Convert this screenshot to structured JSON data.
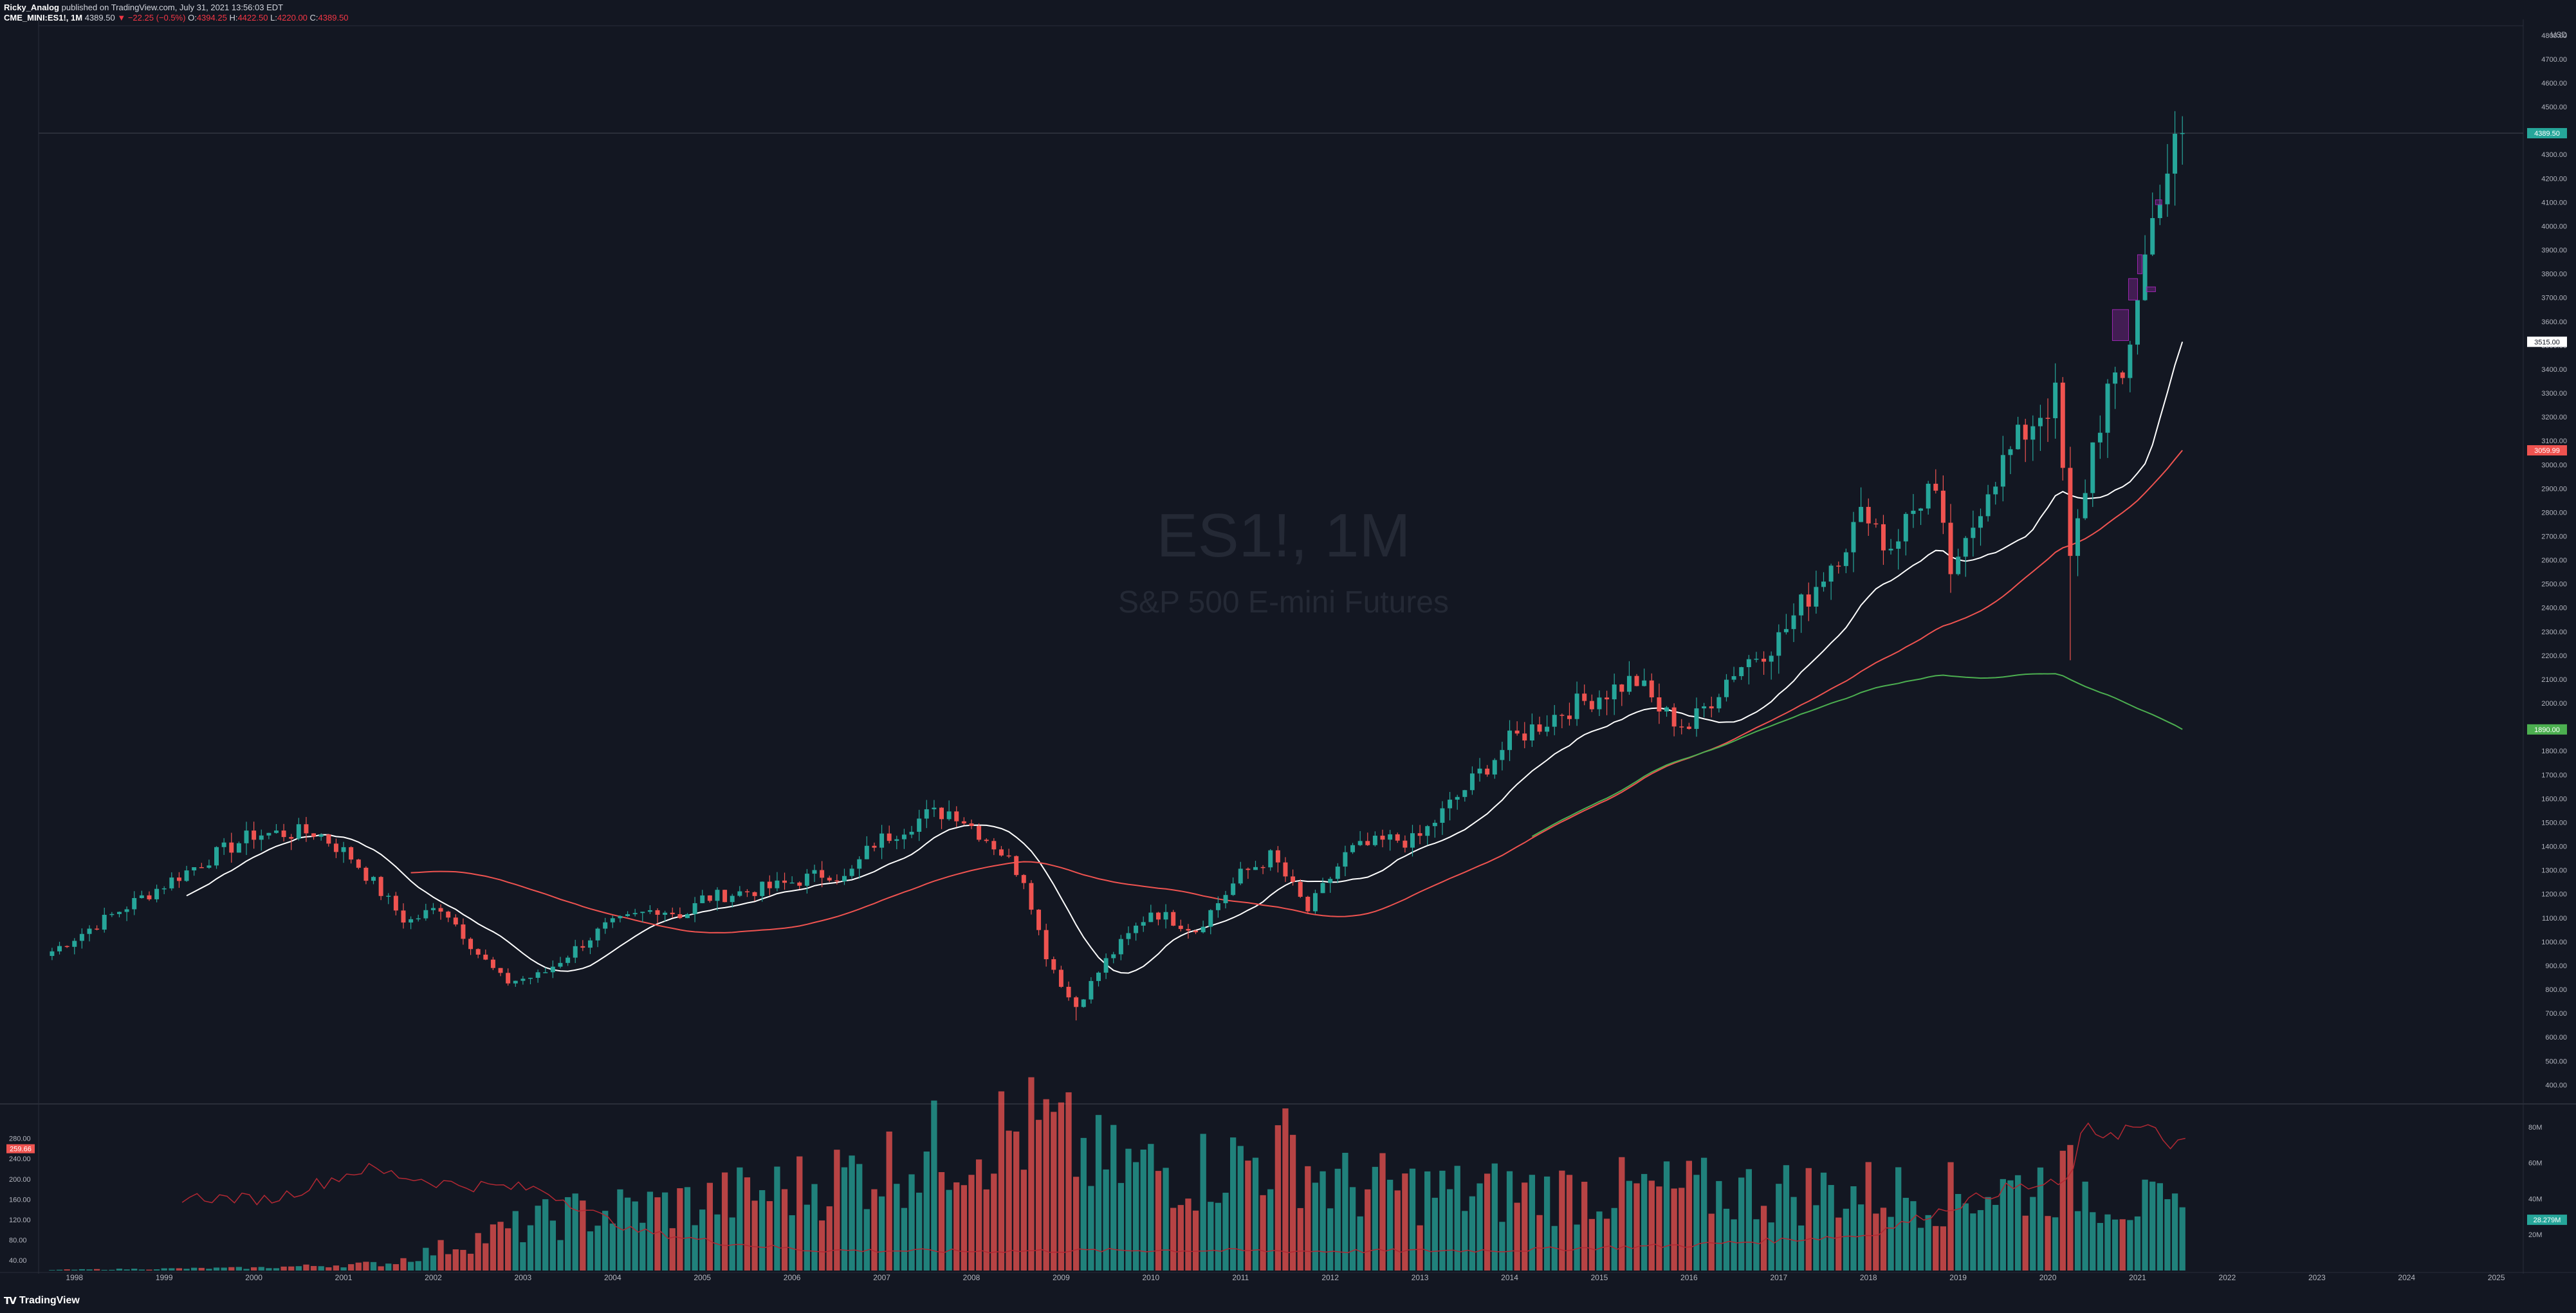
{
  "header": {
    "author": "Ricky_Analog",
    "published_text": "published on TradingView.com, July 31, 2021 13:56:03 EDT",
    "symbol": "CME_MINI:ES1!, 1M",
    "last": "4389.50",
    "arrow": "▼",
    "change": "−22.25 (−0.5%)",
    "o_label": "O:",
    "o_value": "4394.25",
    "h_label": "H:",
    "h_value": "4422.50",
    "l_label": "L:",
    "l_value": "4220.00",
    "c_label": "C:",
    "c_value": "4389.50"
  },
  "watermark": {
    "title": "ES1!, 1M",
    "subtitle": "S&P 500 E-mini Futures"
  },
  "footer": {
    "brand": "TradingView"
  },
  "colors": {
    "background": "#131722",
    "up": "#26a69a",
    "down": "#ef5350",
    "ma_fast": "#ffffff",
    "ma_mid": "#ef5350",
    "ma_slow": "#4caf50",
    "marker": "#9c27b0"
  },
  "chart_data": [
    {
      "type": "candlestick",
      "currency": "USD",
      "ylim": [
        320,
        4840
      ],
      "y_ticks": [
        400,
        500,
        600,
        700,
        800,
        900,
        1000,
        1100,
        1200,
        1300,
        1400,
        1500,
        1600,
        1700,
        1800,
        1900,
        2000,
        2100,
        2200,
        2300,
        2400,
        2500,
        2600,
        2700,
        2800,
        2900,
        3000,
        3100,
        3200,
        3300,
        3400,
        3500,
        3600,
        3700,
        3800,
        3900,
        4000,
        4100,
        4200,
        4300,
        4400,
        4500,
        4600,
        4700,
        4800
      ],
      "y_tick_labels": [
        "400.00",
        "500.00",
        "600.00",
        "700.00",
        "800.00",
        "900.00",
        "1000.00",
        "1100.00",
        "1200.00",
        "1300.00",
        "1400.00",
        "1500.00",
        "1600.00",
        "1700.00",
        "1800.00",
        "1900.00",
        "2000.00",
        "2100.00",
        "2200.00",
        "2300.00",
        "2400.00",
        "2500.00",
        "2600.00",
        "2700.00",
        "2800.00",
        "2900.00",
        "3000.00",
        "3100.00",
        "3200.00",
        "3300.00",
        "3400.00",
        "3500.00",
        "3600.00",
        "3700.00",
        "3800.00",
        "3900.00",
        "4000.00",
        "4100.00",
        "4200.00",
        "4300.00",
        "4400.00",
        "4500.00",
        "4600.00",
        "4700.00",
        "4800.00"
      ],
      "x_years": [
        "1998",
        "1999",
        "2000",
        "2001",
        "2002",
        "2003",
        "2004",
        "2005",
        "2006",
        "2007",
        "2008",
        "2009",
        "2010",
        "2011",
        "2012",
        "2013",
        "2014",
        "2015",
        "2016",
        "2017",
        "2018",
        "2019",
        "2020",
        "2021",
        "2022",
        "2023",
        "2024",
        "2025"
      ],
      "x_range_years": [
        1997.6,
        2025.3
      ],
      "price_anchors": [
        [
          1997.75,
          960
        ],
        [
          1998.5,
          1130
        ],
        [
          1999.5,
          1350
        ],
        [
          2000.0,
          1450
        ],
        [
          2000.7,
          1460
        ],
        [
          2001.1,
          1350
        ],
        [
          2001.7,
          1080
        ],
        [
          2002.1,
          1150
        ],
        [
          2002.5,
          950
        ],
        [
          2002.8,
          830
        ],
        [
          2003.2,
          860
        ],
        [
          2003.9,
          1060
        ],
        [
          2004.5,
          1140
        ],
        [
          2004.8,
          1110
        ],
        [
          2005.0,
          1180
        ],
        [
          2005.8,
          1230
        ],
        [
          2006.4,
          1290
        ],
        [
          2006.6,
          1260
        ],
        [
          2006.9,
          1410
        ],
        [
          2007.5,
          1530
        ],
        [
          2007.8,
          1550
        ],
        [
          2008.3,
          1390
        ],
        [
          2008.6,
          1260
        ],
        [
          2008.8,
          970
        ],
        [
          2009.15,
          720
        ],
        [
          2009.5,
          920
        ],
        [
          2010.0,
          1130
        ],
        [
          2010.5,
          1050
        ],
        [
          2011.0,
          1280
        ],
        [
          2011.35,
          1360
        ],
        [
          2011.75,
          1130
        ],
        [
          2012.2,
          1380
        ],
        [
          2012.7,
          1430
        ],
        [
          2012.95,
          1420
        ],
        [
          2013.5,
          1640
        ],
        [
          2014.0,
          1840
        ],
        [
          2014.6,
          1970
        ],
        [
          2015.4,
          2100
        ],
        [
          2015.7,
          1960
        ],
        [
          2016.0,
          1900
        ],
        [
          2016.5,
          2140
        ],
        [
          2017.0,
          2270
        ],
        [
          2018.0,
          2820
        ],
        [
          2018.2,
          2640
        ],
        [
          2018.7,
          2920
        ],
        [
          2018.95,
          2500
        ],
        [
          2019.3,
          2900
        ],
        [
          2019.9,
          3220
        ],
        [
          2020.1,
          3280
        ],
        [
          2020.25,
          2580
        ],
        [
          2020.5,
          3080
        ],
        [
          2020.7,
          3350
        ],
        [
          2020.8,
          3270
        ],
        [
          2021.0,
          3720
        ],
        [
          2021.25,
          4170
        ],
        [
          2021.5,
          4390
        ]
      ],
      "last_label": "4389.50",
      "ma_fast_label": "3515.00",
      "ma_mid_label": "3059.99",
      "ma_slow_label": "1890.00",
      "ma_fast_start": 1999.2,
      "ma_mid_start": 2001.75,
      "ma_slow_start": 2014.25,
      "ma_fast_last": 3515,
      "ma_mid_last": 3060,
      "ma_slow_last": 1890
    },
    {
      "type": "bar",
      "name": "Volume",
      "y_right_ticks": [
        "20M",
        "40M",
        "60M",
        "80M"
      ],
      "y_right_values": [
        20,
        40,
        60,
        80
      ],
      "y_left_ticks": [
        "40.00",
        "80.00",
        "120.00",
        "160.00",
        "200.00",
        "240.00",
        "280.00"
      ],
      "y_left_values": [
        40,
        80,
        120,
        160,
        200,
        240,
        280
      ],
      "left_axis_last_label": "259.66",
      "right_axis_last_label": "28.279M",
      "volume_anchors": [
        [
          1997.6,
          0.3
        ],
        [
          2000.0,
          1.5
        ],
        [
          2001.5,
          4
        ],
        [
          2002.5,
          18
        ],
        [
          2003.5,
          31
        ],
        [
          2005.0,
          38
        ],
        [
          2006.0,
          46
        ],
        [
          2007.0,
          58
        ],
        [
          2007.5,
          65
        ],
        [
          2008.0,
          74
        ],
        [
          2008.8,
          78
        ],
        [
          2009.5,
          58
        ],
        [
          2010.5,
          56
        ],
        [
          2011.6,
          66
        ],
        [
          2012.0,
          48
        ],
        [
          2013.5,
          43
        ],
        [
          2014.5,
          44
        ],
        [
          2016.0,
          44
        ],
        [
          2018.0,
          44
        ],
        [
          2019.0,
          42
        ],
        [
          2020.2,
          50
        ],
        [
          2021.5,
          30
        ]
      ],
      "left_line_anchors": [
        [
          1999.2,
          165
        ],
        [
          2000.2,
          160
        ],
        [
          2001.2,
          220
        ],
        [
          2002.2,
          190
        ],
        [
          2003.2,
          180
        ],
        [
          2004.2,
          100
        ],
        [
          2005.2,
          75
        ],
        [
          2006.2,
          60
        ],
        [
          2008.0,
          58
        ],
        [
          2010.0,
          60
        ],
        [
          2012.0,
          58
        ],
        [
          2014.0,
          60
        ],
        [
          2016.0,
          70
        ],
        [
          2018.0,
          90
        ],
        [
          2019.5,
          180
        ],
        [
          2020.2,
          190
        ],
        [
          2020.4,
          290
        ],
        [
          2021.0,
          300
        ],
        [
          2021.5,
          265
        ]
      ]
    }
  ]
}
